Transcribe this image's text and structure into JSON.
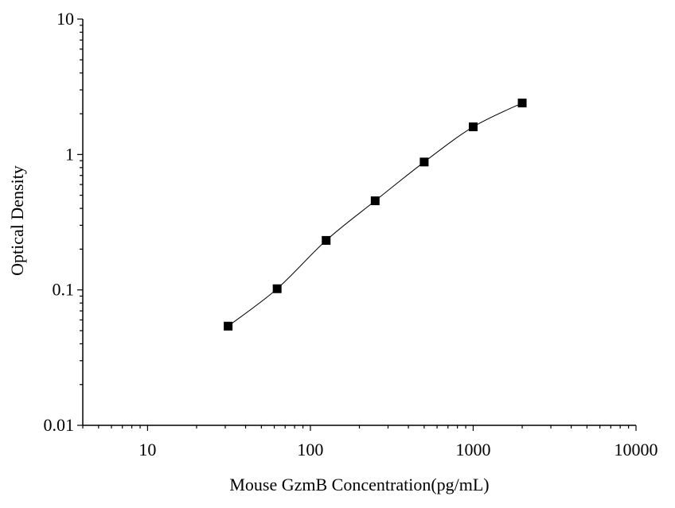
{
  "chart_data": {
    "type": "scatter",
    "xscale": "log",
    "yscale": "log",
    "xlabel": "Mouse GzmB Concentration(pg/mL)",
    "ylabel": "Optical Density",
    "xlim": [
      4,
      10000
    ],
    "ylim": [
      0.01,
      10
    ],
    "xticks": [
      {
        "value": 10,
        "label": "10"
      },
      {
        "value": 100,
        "label": "100"
      },
      {
        "value": 1000,
        "label": "1000"
      },
      {
        "value": 10000,
        "label": "10000"
      }
    ],
    "yticks": [
      {
        "value": 0.01,
        "label": "0.01"
      },
      {
        "value": 0.1,
        "label": "0.1"
      },
      {
        "value": 1,
        "label": "1"
      },
      {
        "value": 10,
        "label": "10"
      }
    ],
    "grid": false,
    "fit_line": true,
    "marker_color": "#000000",
    "series": [
      {
        "x": [
          31.25,
          62.5,
          125,
          250,
          500,
          1000,
          2000
        ],
        "y": [
          0.054,
          0.102,
          0.232,
          0.455,
          0.88,
          1.6,
          2.4
        ]
      }
    ]
  }
}
